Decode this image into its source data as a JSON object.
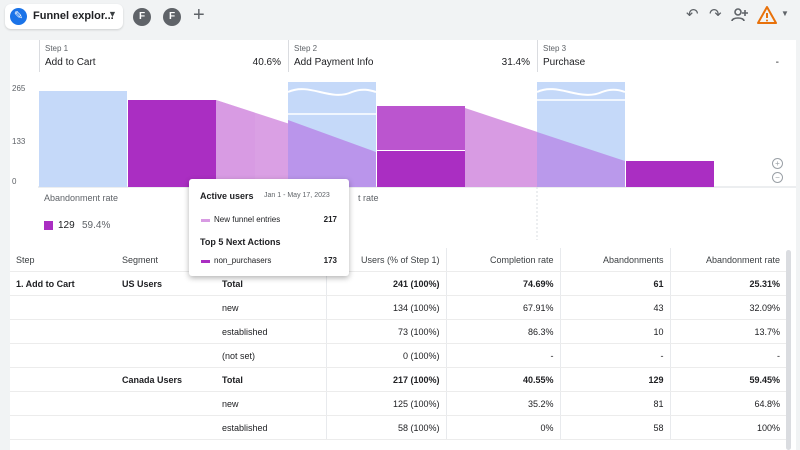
{
  "toolbar": {
    "tab_label": "Funnel explor...",
    "segment_chips": [
      "F",
      "F"
    ],
    "add_tab": "+",
    "undo": "↶",
    "redo": "↷",
    "share": "+"
  },
  "steps": [
    {
      "num": "Step 1",
      "name": "Add to Cart",
      "pct": "40.6%"
    },
    {
      "num": "Step 2",
      "name": "Add Payment Info",
      "pct": "31.4%"
    },
    {
      "num": "Step 3",
      "name": "Purchase",
      "pct": "-"
    }
  ],
  "y_axis": [
    "265",
    "133",
    "0"
  ],
  "abandonment": {
    "label": "Abandonment rate",
    "label2": "t rate",
    "count": "129",
    "rate": "59.4%"
  },
  "tooltip": {
    "title": "Active users",
    "date": "Jan 1 - May 17, 2023",
    "row1_label": "New funnel entries",
    "row1_value": "217",
    "subtitle": "Top 5 Next Actions",
    "row2_label": "non_purchasers",
    "row2_value": "173"
  },
  "colors": {
    "purple_dark": "#aa2ec2",
    "purple_light": "#d89be3",
    "blue_light": "#c5d9f9"
  },
  "table": {
    "headers": [
      "Step",
      "Segment",
      "",
      "Users (% of Step 1)",
      "Completion rate",
      "Abandonments",
      "Abandonment rate"
    ],
    "rows": [
      [
        "1. Add to Cart",
        "US Users",
        "Total",
        "241 (100%)",
        "74.69%",
        "61",
        "25.31%"
      ],
      [
        "",
        "",
        "new",
        "134 (100%)",
        "67.91%",
        "43",
        "32.09%"
      ],
      [
        "",
        "",
        "established",
        "73 (100%)",
        "86.3%",
        "10",
        "13.7%"
      ],
      [
        "",
        "",
        "(not set)",
        "0 (100%)",
        "-",
        "-",
        "-"
      ],
      [
        "",
        "Canada Users",
        "Total",
        "217 (100%)",
        "40.55%",
        "129",
        "59.45%"
      ],
      [
        "",
        "",
        "new",
        "125 (100%)",
        "35.2%",
        "81",
        "64.8%"
      ],
      [
        "",
        "",
        "established",
        "58 (100%)",
        "0%",
        "58",
        "100%"
      ]
    ]
  }
}
